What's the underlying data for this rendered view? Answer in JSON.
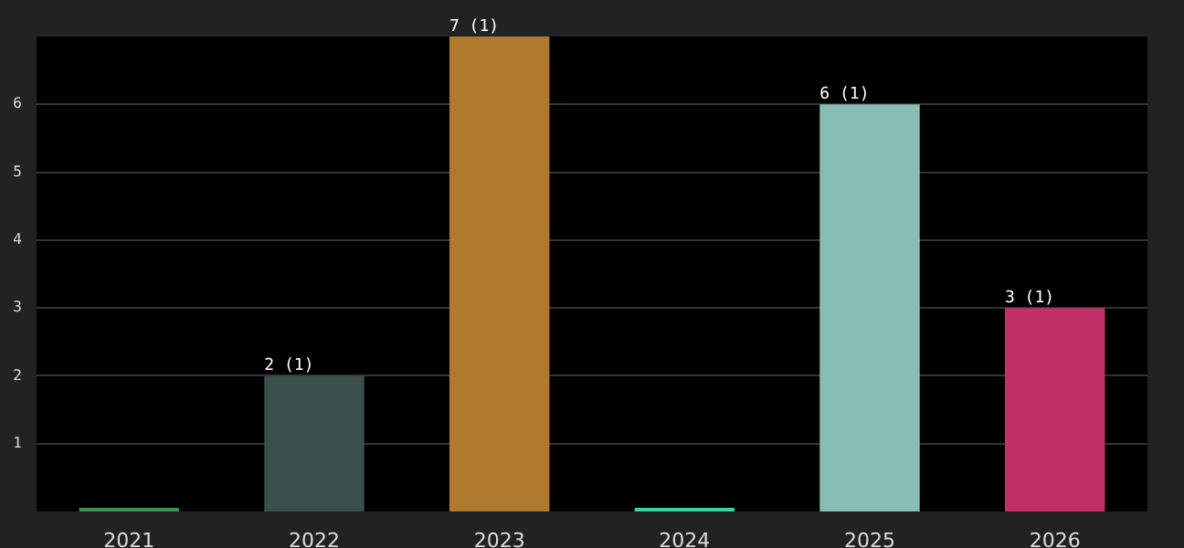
{
  "chart_data": {
    "type": "bar",
    "categories": [
      "2021",
      "2022",
      "2023",
      "2024",
      "2025",
      "2026"
    ],
    "values": [
      0,
      2,
      7,
      0,
      6,
      3
    ],
    "colors": [
      "#3f8f4f",
      "#3a4e4c",
      "#b07a2e",
      "#2fd6a0",
      "#88bdb4",
      "#c23066"
    ],
    "value_labels": [
      null,
      "2 (1)",
      "7 (1)",
      null,
      "6 (1)",
      "3 (1)"
    ],
    "ylim": [
      0,
      7
    ],
    "yticks": [
      1,
      2,
      3,
      4,
      5,
      6
    ],
    "grid": "y",
    "legend": false
  }
}
